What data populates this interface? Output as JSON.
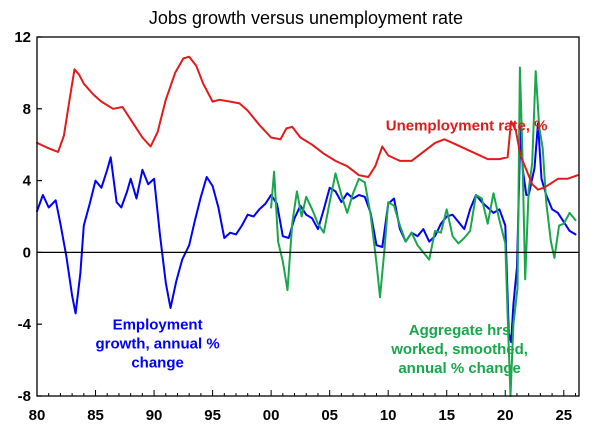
{
  "chart_data": {
    "type": "line",
    "title": "Jobs growth versus unemployment rate",
    "xlabel": "",
    "ylabel": "",
    "xlim": [
      1980,
      2026.3
    ],
    "ylim": [
      -8,
      12
    ],
    "x_ticks": [
      1980,
      1985,
      1990,
      1995,
      2000,
      2005,
      2010,
      2015,
      2020,
      2025
    ],
    "x_tick_labels": [
      "80",
      "85",
      "90",
      "95",
      "00",
      "05",
      "10",
      "15",
      "20",
      "25"
    ],
    "y_ticks": [
      -8,
      -4,
      0,
      4,
      8,
      12
    ],
    "y_tick_labels": [
      "-8",
      "-4",
      "0",
      "4",
      "8",
      "12"
    ],
    "gridlines": "none",
    "legend": "inline annotations",
    "series": [
      {
        "name": "Unemployment rate, %",
        "color": "#e31a1c",
        "label_lines": [
          "Unemployment rate, %"
        ],
        "points": [
          [
            1980,
            6.1
          ],
          [
            1981,
            5.8
          ],
          [
            1981.8,
            5.6
          ],
          [
            1982.3,
            6.5
          ],
          [
            1982.8,
            8.6
          ],
          [
            1983.2,
            10.2
          ],
          [
            1983.6,
            9.9
          ],
          [
            1984,
            9.4
          ],
          [
            1984.8,
            8.8
          ],
          [
            1985.5,
            8.4
          ],
          [
            1986.5,
            8.0
          ],
          [
            1987.3,
            8.1
          ],
          [
            1988,
            7.4
          ],
          [
            1989,
            6.4
          ],
          [
            1989.7,
            5.9
          ],
          [
            1990.3,
            6.7
          ],
          [
            1991,
            8.5
          ],
          [
            1991.8,
            10.0
          ],
          [
            1992.5,
            10.8
          ],
          [
            1993,
            10.9
          ],
          [
            1993.6,
            10.4
          ],
          [
            1994.2,
            9.4
          ],
          [
            1995,
            8.4
          ],
          [
            1995.6,
            8.5
          ],
          [
            1996.5,
            8.4
          ],
          [
            1997.3,
            8.3
          ],
          [
            1998,
            7.9
          ],
          [
            1999,
            7.1
          ],
          [
            2000,
            6.4
          ],
          [
            2000.8,
            6.3
          ],
          [
            2001.3,
            6.9
          ],
          [
            2001.8,
            7.0
          ],
          [
            2002.5,
            6.4
          ],
          [
            2003.5,
            6.0
          ],
          [
            2004.5,
            5.5
          ],
          [
            2005.5,
            5.1
          ],
          [
            2006.5,
            4.8
          ],
          [
            2007.5,
            4.3
          ],
          [
            2008.3,
            4.2
          ],
          [
            2008.9,
            4.8
          ],
          [
            2009.5,
            5.9
          ],
          [
            2010,
            5.4
          ],
          [
            2011,
            5.1
          ],
          [
            2012,
            5.1
          ],
          [
            2013,
            5.6
          ],
          [
            2014,
            6.1
          ],
          [
            2014.8,
            6.3
          ],
          [
            2015.5,
            6.1
          ],
          [
            2016.5,
            5.8
          ],
          [
            2017.5,
            5.5
          ],
          [
            2018.5,
            5.2
          ],
          [
            2019.5,
            5.2
          ],
          [
            2020.2,
            5.3
          ],
          [
            2020.5,
            7.3
          ],
          [
            2020.9,
            6.8
          ],
          [
            2021.3,
            5.4
          ],
          [
            2021.8,
            4.6
          ],
          [
            2022.3,
            3.8
          ],
          [
            2022.8,
            3.5
          ],
          [
            2023.3,
            3.6
          ],
          [
            2023.8,
            3.8
          ],
          [
            2024.5,
            4.1
          ],
          [
            2025.3,
            4.1
          ],
          [
            2026.2,
            4.3
          ]
        ]
      },
      {
        "name": "Employment growth, annual % change",
        "color": "#0000ff",
        "label_lines": [
          "Employment",
          "growth, annual %",
          "change"
        ],
        "points": [
          [
            1980,
            2.3
          ],
          [
            1980.5,
            3.2
          ],
          [
            1981,
            2.5
          ],
          [
            1981.6,
            2.9
          ],
          [
            1982,
            1.6
          ],
          [
            1982.5,
            -0.2
          ],
          [
            1983,
            -2.4
          ],
          [
            1983.3,
            -3.4
          ],
          [
            1983.7,
            -1.2
          ],
          [
            1984,
            1.5
          ],
          [
            1984.5,
            2.7
          ],
          [
            1985,
            4.0
          ],
          [
            1985.5,
            3.6
          ],
          [
            1986,
            4.6
          ],
          [
            1986.3,
            5.3
          ],
          [
            1986.8,
            2.8
          ],
          [
            1987.2,
            2.5
          ],
          [
            1987.7,
            3.4
          ],
          [
            1988,
            4.1
          ],
          [
            1988.5,
            3.0
          ],
          [
            1989,
            4.6
          ],
          [
            1989.5,
            3.8
          ],
          [
            1990,
            4.1
          ],
          [
            1990.5,
            1.0
          ],
          [
            1991,
            -1.7
          ],
          [
            1991.4,
            -3.1
          ],
          [
            1991.9,
            -1.6
          ],
          [
            1992.4,
            -0.4
          ],
          [
            1993,
            0.4
          ],
          [
            1993.5,
            1.8
          ],
          [
            1994,
            3.1
          ],
          [
            1994.5,
            4.2
          ],
          [
            1995,
            3.7
          ],
          [
            1995.5,
            2.5
          ],
          [
            1996,
            0.8
          ],
          [
            1996.5,
            1.1
          ],
          [
            1997,
            1.0
          ],
          [
            1997.5,
            1.5
          ],
          [
            1998,
            2.1
          ],
          [
            1998.5,
            2.0
          ],
          [
            1999,
            2.4
          ],
          [
            1999.5,
            2.7
          ],
          [
            2000,
            3.2
          ],
          [
            2000.5,
            2.7
          ],
          [
            2001,
            0.9
          ],
          [
            2001.5,
            0.8
          ],
          [
            2002,
            1.9
          ],
          [
            2002.5,
            2.6
          ],
          [
            2003,
            2.1
          ],
          [
            2003.5,
            1.9
          ],
          [
            2004,
            1.3
          ],
          [
            2004.5,
            2.4
          ],
          [
            2005,
            3.6
          ],
          [
            2005.5,
            3.4
          ],
          [
            2006,
            2.8
          ],
          [
            2006.5,
            3.3
          ],
          [
            2007,
            3.0
          ],
          [
            2007.5,
            3.2
          ],
          [
            2008,
            3.1
          ],
          [
            2008.5,
            2.2
          ],
          [
            2009,
            0.4
          ],
          [
            2009.5,
            0.3
          ],
          [
            2010,
            2.7
          ],
          [
            2010.5,
            3.0
          ],
          [
            2011,
            1.3
          ],
          [
            2011.5,
            0.6
          ],
          [
            2012,
            1.1
          ],
          [
            2012.5,
            0.9
          ],
          [
            2013,
            1.3
          ],
          [
            2013.5,
            0.6
          ],
          [
            2014,
            0.9
          ],
          [
            2014.5,
            1.6
          ],
          [
            2015,
            2.0
          ],
          [
            2015.5,
            2.1
          ],
          [
            2016,
            1.7
          ],
          [
            2016.5,
            1.3
          ],
          [
            2017,
            2.4
          ],
          [
            2017.5,
            3.2
          ],
          [
            2018,
            2.8
          ],
          [
            2018.5,
            2.5
          ],
          [
            2019,
            2.2
          ],
          [
            2019.5,
            2.4
          ],
          [
            2020,
            1.5
          ],
          [
            2020.3,
            -4.5
          ],
          [
            2020.5,
            -5.0
          ],
          [
            2020.7,
            -2.9
          ],
          [
            2021,
            -0.8
          ],
          [
            2021.3,
            7.0
          ],
          [
            2021.5,
            4.6
          ],
          [
            2021.8,
            3.2
          ],
          [
            2022,
            3.2
          ],
          [
            2022.5,
            4.7
          ],
          [
            2022.8,
            7.2
          ],
          [
            2023.1,
            4.1
          ],
          [
            2023.5,
            3.2
          ],
          [
            2024,
            2.4
          ],
          [
            2024.5,
            2.2
          ],
          [
            2025,
            1.7
          ],
          [
            2025.5,
            1.2
          ],
          [
            2026,
            1.0
          ]
        ]
      },
      {
        "name": "Aggregate hrs worked, smoothed, annual % change",
        "color": "#1aa64b",
        "label_lines": [
          "Aggregate hrs",
          "worked, smoothed,",
          "annual % change"
        ],
        "points": [
          [
            2000,
            2.5
          ],
          [
            2000.25,
            4.5
          ],
          [
            2000.6,
            0.6
          ],
          [
            2001,
            -0.5
          ],
          [
            2001.4,
            -2.1
          ],
          [
            2001.8,
            1.6
          ],
          [
            2002.2,
            3.4
          ],
          [
            2002.6,
            2.0
          ],
          [
            2003,
            3.1
          ],
          [
            2003.5,
            2.4
          ],
          [
            2004,
            1.6
          ],
          [
            2004.5,
            1.1
          ],
          [
            2005,
            2.8
          ],
          [
            2005.5,
            4.4
          ],
          [
            2006,
            3.2
          ],
          [
            2006.5,
            2.2
          ],
          [
            2007,
            3.3
          ],
          [
            2007.5,
            4.1
          ],
          [
            2008,
            3.9
          ],
          [
            2008.5,
            2.1
          ],
          [
            2009,
            -0.6
          ],
          [
            2009.3,
            -2.5
          ],
          [
            2009.7,
            0.3
          ],
          [
            2010,
            2.8
          ],
          [
            2010.5,
            2.6
          ],
          [
            2011,
            1.5
          ],
          [
            2011.5,
            0.6
          ],
          [
            2012,
            1.1
          ],
          [
            2012.5,
            0.4
          ],
          [
            2013,
            0.0
          ],
          [
            2013.5,
            -0.4
          ],
          [
            2014,
            1.2
          ],
          [
            2014.5,
            1.1
          ],
          [
            2015,
            2.4
          ],
          [
            2015.5,
            0.9
          ],
          [
            2016,
            0.5
          ],
          [
            2016.5,
            0.8
          ],
          [
            2017,
            1.2
          ],
          [
            2017.5,
            3.2
          ],
          [
            2018,
            3.0
          ],
          [
            2018.5,
            1.6
          ],
          [
            2019,
            3.3
          ],
          [
            2019.5,
            1.8
          ],
          [
            2020,
            0.5
          ],
          [
            2020.2,
            -3.5
          ],
          [
            2020.45,
            -8.0
          ],
          [
            2020.7,
            -4.0
          ],
          [
            2021.05,
            -2.0
          ],
          [
            2021.25,
            10.3
          ],
          [
            2021.45,
            6.0
          ],
          [
            2021.7,
            -1.5
          ],
          [
            2022,
            3.5
          ],
          [
            2022.3,
            5.0
          ],
          [
            2022.6,
            10.1
          ],
          [
            2022.9,
            7.0
          ],
          [
            2023.2,
            5.8
          ],
          [
            2023.5,
            2.8
          ],
          [
            2023.9,
            0.6
          ],
          [
            2024.2,
            -0.3
          ],
          [
            2024.6,
            1.5
          ],
          [
            2025,
            1.6
          ],
          [
            2025.5,
            2.2
          ],
          [
            2026,
            1.8
          ]
        ]
      }
    ]
  }
}
